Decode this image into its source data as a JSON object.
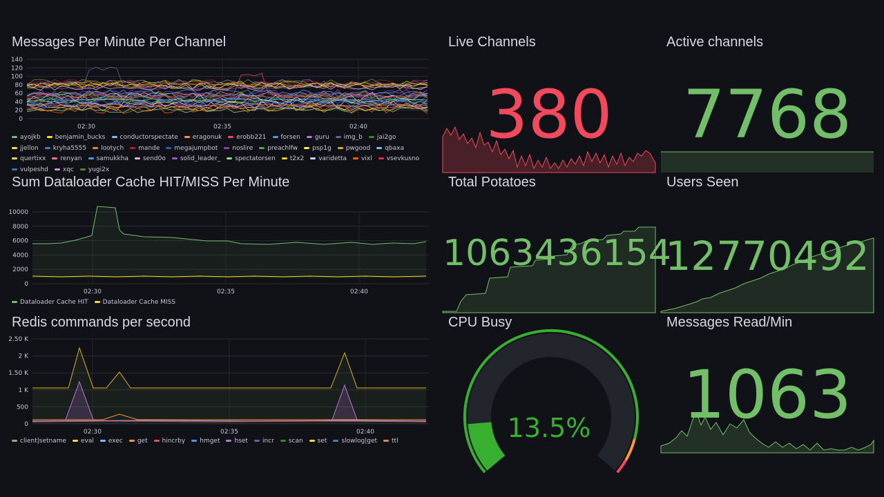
{
  "panels": {
    "messages": {
      "title": "Messages Per Minute Per Channel",
      "y_ticks": [
        "140",
        "120",
        "100",
        "80",
        "60",
        "40",
        "20",
        "0"
      ],
      "x_ticks": [
        "02:30",
        "02:35",
        "02:40"
      ],
      "legend": [
        {
          "name": "ayojkb",
          "color": "#73bf69"
        },
        {
          "name": "benjamin_bucks",
          "color": "#fade2a"
        },
        {
          "name": "conductorspectate",
          "color": "#8ab8ff"
        },
        {
          "name": "eragonuk",
          "color": "#ff9830"
        },
        {
          "name": "erobb221",
          "color": "#f2495c"
        },
        {
          "name": "forsen",
          "color": "#5794f2"
        },
        {
          "name": "guru",
          "color": "#b877d9"
        },
        {
          "name": "img_b",
          "color": "#705da0"
        },
        {
          "name": "jai2go",
          "color": "#37872d"
        },
        {
          "name": "jjellon",
          "color": "#fade2a"
        },
        {
          "name": "kryha5555",
          "color": "#447ebc"
        },
        {
          "name": "lootych",
          "color": "#ef843c"
        },
        {
          "name": "mande",
          "color": "#c4162a"
        },
        {
          "name": "megajumpbot",
          "color": "#1f60c4"
        },
        {
          "name": "noslire",
          "color": "#8f3bb8"
        },
        {
          "name": "preachlfw",
          "color": "#56a64b"
        },
        {
          "name": "psp1g",
          "color": "#ffee52"
        },
        {
          "name": "pwgood",
          "color": "#e0b400"
        },
        {
          "name": "qbaxa",
          "color": "#8ab8ff"
        },
        {
          "name": "quertixx",
          "color": "#ffcb7d"
        },
        {
          "name": "renyan",
          "color": "#ff7383"
        },
        {
          "name": "samukkha",
          "color": "#5794f2"
        },
        {
          "name": "send0o",
          "color": "#dcb5f0"
        },
        {
          "name": "solid_leader_",
          "color": "#a352cc"
        },
        {
          "name": "spectatorsen",
          "color": "#96d98d"
        },
        {
          "name": "t2x2",
          "color": "#f2cc0c"
        },
        {
          "name": "varidetta",
          "color": "#c0d8ff"
        },
        {
          "name": "vixl",
          "color": "#fa6400"
        },
        {
          "name": "vsevkusno",
          "color": "#e02f44"
        },
        {
          "name": "vulpeshd",
          "color": "#3274d9"
        },
        {
          "name": "xqc",
          "color": "#ca95e5"
        },
        {
          "name": "yugi2x",
          "color": "#508642"
        }
      ]
    },
    "cache": {
      "title": "Sum Dataloader Cache HIT/MISS Per Minute",
      "y_ticks": [
        "10000",
        "8000",
        "6000",
        "4000",
        "2000",
        "0"
      ],
      "x_ticks": [
        "02:30",
        "02:35",
        "02:40"
      ],
      "legend": [
        {
          "name": "Dataloader Cache HIT",
          "color": "#73bf69"
        },
        {
          "name": "Dataloader Cache MISS",
          "color": "#fade2a"
        }
      ]
    },
    "redis": {
      "title": "Redis commands per second",
      "y_ticks": [
        "2.50 K",
        "2 K",
        "1.50 K",
        "1 K",
        "500",
        "0"
      ],
      "x_ticks": [
        "02:30",
        "02:35",
        "02:40"
      ],
      "legend": [
        {
          "name": "client|setname",
          "color": "#73bf69"
        },
        {
          "name": "eval",
          "color": "#fade2a"
        },
        {
          "name": "exec",
          "color": "#8ab8ff"
        },
        {
          "name": "get",
          "color": "#ff9830"
        },
        {
          "name": "hincrby",
          "color": "#f2495c"
        },
        {
          "name": "hmget",
          "color": "#5794f2"
        },
        {
          "name": "hset",
          "color": "#b877d9"
        },
        {
          "name": "incr",
          "color": "#705da0"
        },
        {
          "name": "scan",
          "color": "#37872d"
        },
        {
          "name": "set",
          "color": "#fade2a"
        },
        {
          "name": "slowlog|get",
          "color": "#447ebc"
        },
        {
          "name": "ttl",
          "color": "#ef843c"
        }
      ]
    },
    "live": {
      "title": "Live Channels",
      "value": "380",
      "color": "#f2495c"
    },
    "active": {
      "title": "Active channels",
      "value": "7768",
      "color": "#73bf69"
    },
    "potatoes": {
      "title": "Total Potatoes",
      "value": "1063436154",
      "color": "#73bf69"
    },
    "users": {
      "title": "Users Seen",
      "value": "12770492",
      "color": "#73bf69"
    },
    "cpu": {
      "title": "CPU Busy",
      "value": "13.5%",
      "percent": 13.5,
      "color": "#37b02f"
    },
    "reads": {
      "title": "Messages Read/Min",
      "value": "1063",
      "color": "#73bf69"
    }
  }
}
